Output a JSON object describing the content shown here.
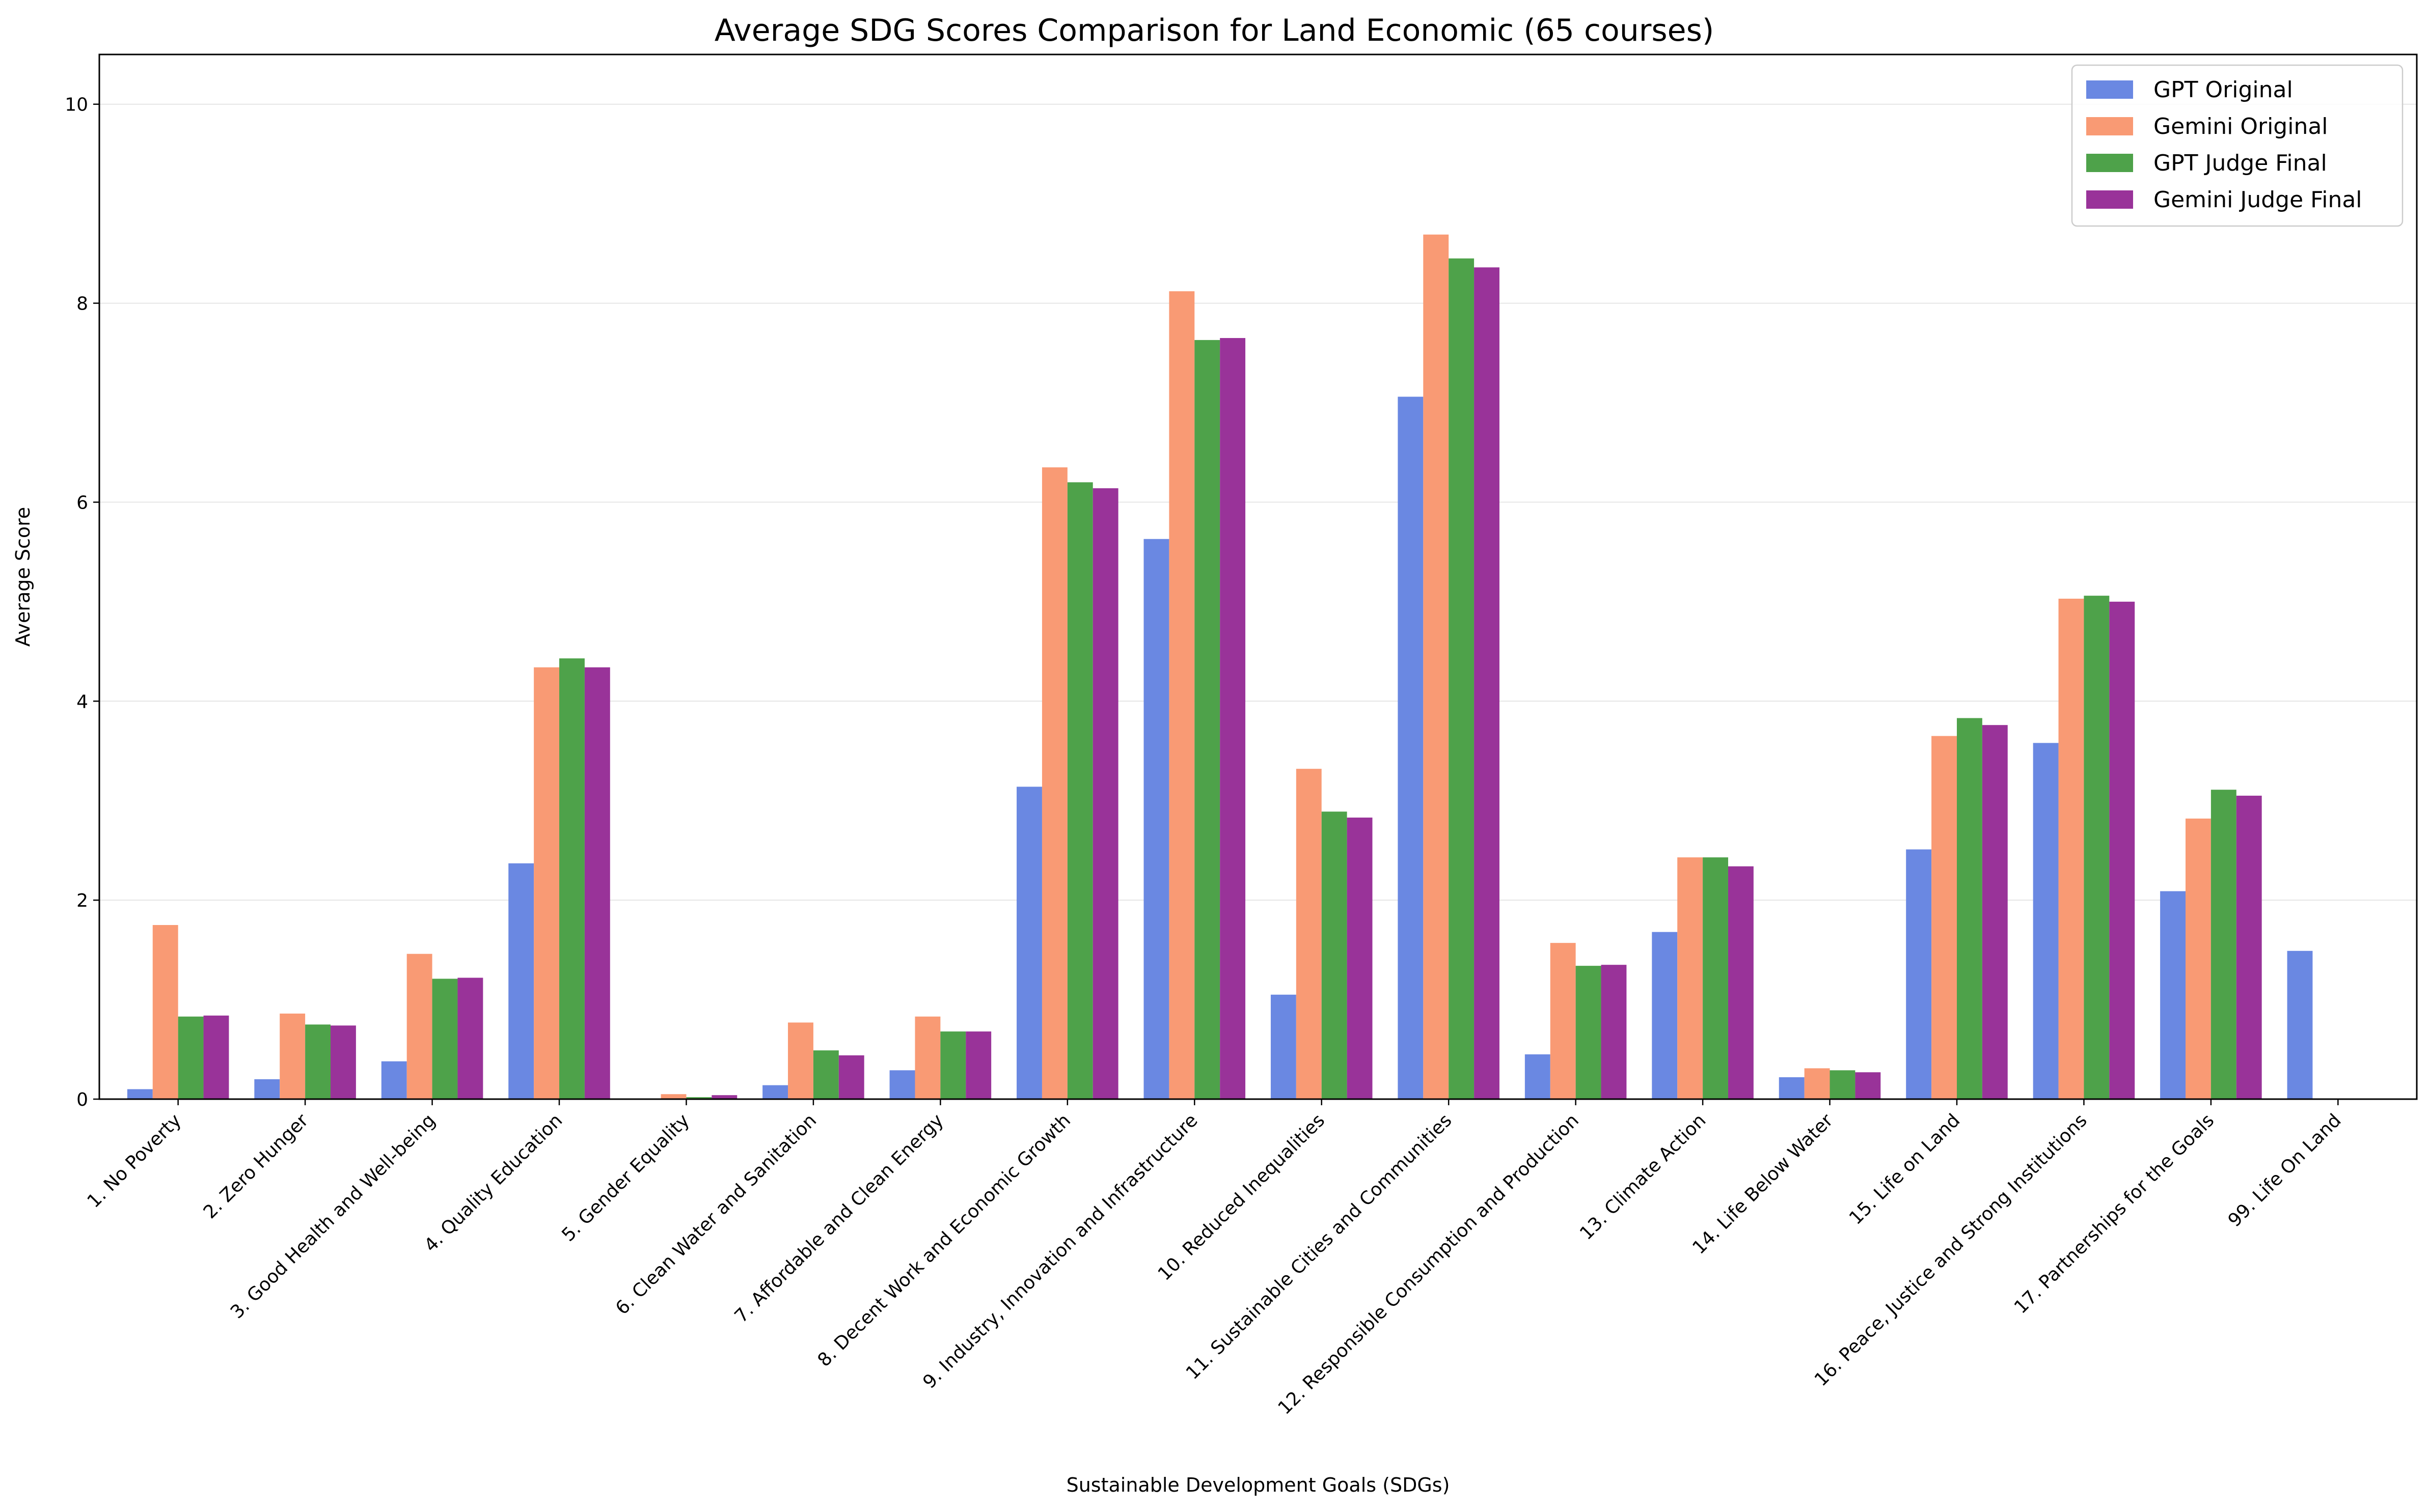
{
  "chart_data": {
    "type": "bar",
    "title": "Average SDG Scores Comparison for Land Economic  (65 courses)",
    "xlabel": "Sustainable Development Goals (SDGs)",
    "ylabel": "Average Score",
    "ylim": [
      0,
      10.5
    ],
    "yticks": [
      0,
      2,
      4,
      6,
      8,
      10
    ],
    "grid": "y",
    "legend_position": "top-right",
    "categories": [
      "1. No Poverty",
      "2. Zero Hunger",
      "3. Good Health and Well-being",
      "4. Quality Education",
      "5. Gender Equality",
      "6. Clean Water and Sanitation",
      "7. Affordable and Clean Energy",
      "8. Decent Work and Economic Growth",
      "9. Industry, Innovation and Infrastructure",
      "10. Reduced Inequalities",
      "11. Sustainable Cities and Communities",
      "12. Responsible Consumption and Production",
      "13. Climate Action",
      "14. Life Below Water",
      "15. Life on Land",
      "16. Peace, Justice and Strong Institutions",
      "17. Partnerships for the Goals",
      "99. Life On Land"
    ],
    "series": [
      {
        "name": "GPT Original",
        "color": "#6a88e2",
        "values": [
          0.1,
          0.2,
          0.38,
          2.37,
          0.0,
          0.14,
          0.29,
          3.14,
          5.63,
          1.05,
          7.06,
          0.45,
          1.68,
          0.22,
          2.51,
          3.58,
          2.09,
          1.49
        ]
      },
      {
        "name": "Gemini Original",
        "color": "#f99a74",
        "values": [
          1.75,
          0.86,
          1.46,
          4.34,
          0.05,
          0.77,
          0.83,
          6.35,
          8.12,
          3.32,
          8.69,
          1.57,
          2.43,
          0.31,
          3.65,
          5.03,
          2.82,
          0.0
        ]
      },
      {
        "name": "GPT Judge Final",
        "color": "#4ea24a",
        "values": [
          0.83,
          0.75,
          1.21,
          4.43,
          0.02,
          0.49,
          0.68,
          6.2,
          7.63,
          2.89,
          8.45,
          1.34,
          2.43,
          0.29,
          3.83,
          5.06,
          3.11,
          0.0
        ]
      },
      {
        "name": "Gemini Judge Final",
        "color": "#993399",
        "values": [
          0.84,
          0.74,
          1.22,
          4.34,
          0.04,
          0.44,
          0.68,
          6.14,
          7.65,
          2.83,
          8.36,
          1.35,
          2.34,
          0.27,
          3.76,
          5.0,
          3.05,
          0.0
        ]
      }
    ]
  }
}
